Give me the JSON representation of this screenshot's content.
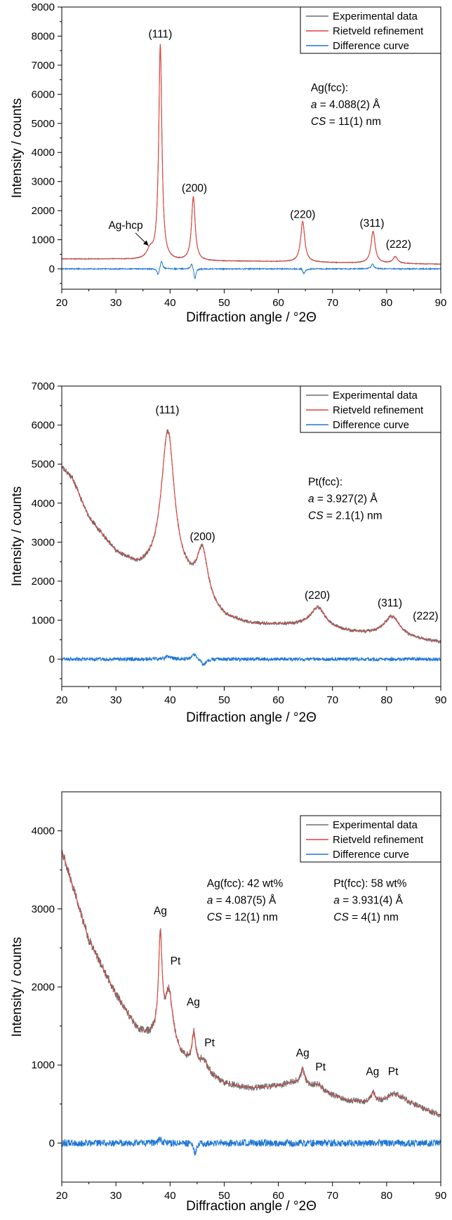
{
  "colors": {
    "experimental": "#6e6e6e",
    "rietveld": "#e0423c",
    "difference": "#1f77d4",
    "axis": "#000000"
  },
  "chart_data": [
    {
      "type": "line",
      "title": "",
      "xlabel": "Diffraction angle / °2Θ",
      "ylabel": "Intensity / counts",
      "xlim": [
        20,
        90
      ],
      "ylim": [
        -700,
        9000
      ],
      "xticks": [
        20,
        30,
        40,
        50,
        60,
        70,
        80,
        90
      ],
      "yticks": [
        0,
        1000,
        2000,
        3000,
        4000,
        5000,
        6000,
        7000,
        8000,
        9000
      ],
      "legend": {
        "position": "top-right",
        "entries": [
          "Experimental data",
          "Rietveld refinement",
          "Difference curve"
        ]
      },
      "series": [
        {
          "name": "Experimental data",
          "color": "#6e6e6e"
        },
        {
          "name": "Rietveld refinement",
          "color": "#e0423c"
        },
        {
          "name": "Difference curve",
          "color": "#1f77d4"
        }
      ],
      "profile": {
        "background": [
          [
            20,
            340
          ],
          [
            30,
            330
          ],
          [
            40,
            260
          ],
          [
            55,
            260
          ],
          [
            70,
            210
          ],
          [
            90,
            160
          ]
        ],
        "peaks": [
          [
            36.3,
            300,
            0.7
          ],
          [
            38.2,
            7400,
            0.35
          ],
          [
            44.3,
            2200,
            0.4
          ],
          [
            64.5,
            1400,
            0.45
          ],
          [
            77.5,
            1100,
            0.45
          ],
          [
            81.6,
            230,
            0.5
          ]
        ],
        "noise": 15,
        "diff_features": [
          [
            37.8,
            -230,
            0.25
          ],
          [
            38.4,
            300,
            0.25
          ],
          [
            44.0,
            200,
            0.25
          ],
          [
            44.6,
            -380,
            0.2
          ],
          [
            64.3,
            50,
            0.3
          ],
          [
            64.7,
            -180,
            0.3
          ],
          [
            77.4,
            160,
            0.3
          ]
        ],
        "diff_noise": 18
      },
      "peak_labels": [
        {
          "x": 38.2,
          "y": 7950,
          "text": "(111)"
        },
        {
          "x": 44.5,
          "y": 2650,
          "text": "(200)"
        },
        {
          "x": 64.5,
          "y": 1750,
          "text": "(220)"
        },
        {
          "x": 77.3,
          "y": 1450,
          "text": "(311)"
        },
        {
          "x": 82.2,
          "y": 720,
          "text": "(222)"
        }
      ],
      "arrow_label": {
        "text": "Ag-hcp",
        "x": 31.8,
        "y": 1380,
        "to": [
          36.0,
          800
        ]
      },
      "info_blocks": [
        {
          "x": 66,
          "y": 6100,
          "phase": "Ag(fcc):",
          "a_sym": "a",
          "a_val": " = 4.088(2) Å",
          "cs_sym": "CS",
          "cs_val": " = 11(1) nm"
        }
      ]
    },
    {
      "type": "line",
      "title": "",
      "xlabel": "Diffraction angle / °2Θ",
      "ylabel": "Intensity / counts",
      "xlim": [
        20,
        90
      ],
      "ylim": [
        -700,
        7000
      ],
      "xticks": [
        20,
        30,
        40,
        50,
        60,
        70,
        80,
        90
      ],
      "yticks": [
        0,
        1000,
        2000,
        3000,
        4000,
        5000,
        6000,
        7000
      ],
      "legend": {
        "position": "top-right",
        "entries": [
          "Experimental data",
          "Rietveld refinement",
          "Difference curve"
        ]
      },
      "series": [
        {
          "name": "Experimental data",
          "color": "#6e6e6e"
        },
        {
          "name": "Rietveld refinement",
          "color": "#e0423c"
        },
        {
          "name": "Difference curve",
          "color": "#1f77d4"
        }
      ],
      "profile": {
        "background": [
          [
            20,
            4900
          ],
          [
            22,
            4600
          ],
          [
            25,
            3600
          ],
          [
            30,
            2700
          ],
          [
            34,
            2280
          ],
          [
            37,
            2150
          ],
          [
            43,
            1800
          ],
          [
            47,
            1250
          ],
          [
            50,
            1000
          ],
          [
            55,
            870
          ],
          [
            60,
            860
          ],
          [
            64,
            850
          ],
          [
            68,
            800
          ],
          [
            72,
            700
          ],
          [
            75,
            650
          ],
          [
            80,
            600
          ],
          [
            85,
            500
          ],
          [
            90,
            420
          ]
        ],
        "peaks": [
          [
            39.6,
            3800,
            1.5
          ],
          [
            46.0,
            1300,
            1.3
          ],
          [
            67.3,
            500,
            1.6
          ],
          [
            81.0,
            500,
            1.8
          ]
        ],
        "noise": 40,
        "diff_features": [
          [
            39.6,
            60,
            0.8
          ],
          [
            44.5,
            120,
            0.5
          ],
          [
            46.2,
            -150,
            0.5
          ]
        ],
        "diff_noise": 45
      },
      "peak_labels": [
        {
          "x": 39.5,
          "y": 6300,
          "text": "(111)"
        },
        {
          "x": 46.0,
          "y": 3050,
          "text": "(200)"
        },
        {
          "x": 67.2,
          "y": 1550,
          "text": "(220)"
        },
        {
          "x": 80.6,
          "y": 1350,
          "text": "(311)"
        },
        {
          "x": 87.2,
          "y": 1020,
          "text": "(222)"
        }
      ],
      "arrow_label": null,
      "info_blocks": [
        {
          "x": 65.5,
          "y": 4450,
          "phase": "Pt(fcc):",
          "a_sym": "a",
          "a_val": " = 3.927(2) Å",
          "cs_sym": "CS",
          "cs_val": " = 2.1(1) nm"
        }
      ]
    },
    {
      "type": "line",
      "title": "",
      "xlabel": "Diffraction angle / °2Θ",
      "ylabel": "Intensity / counts",
      "xlim": [
        20,
        90
      ],
      "ylim": [
        -500,
        4500
      ],
      "xticks": [
        20,
        30,
        40,
        50,
        60,
        70,
        80,
        90
      ],
      "yticks": [
        0,
        1000,
        2000,
        3000,
        4000
      ],
      "legend": {
        "position": "top-right",
        "entries": [
          "Experimental data",
          "Rietveld refinement",
          "Difference curve"
        ]
      },
      "series": [
        {
          "name": "Experimental data",
          "color": "#6e6e6e"
        },
        {
          "name": "Rietveld refinement",
          "color": "#e0423c"
        },
        {
          "name": "Difference curve",
          "color": "#1f77d4"
        }
      ],
      "profile": {
        "background": [
          [
            20,
            3750
          ],
          [
            22,
            3300
          ],
          [
            25,
            2600
          ],
          [
            30,
            1900
          ],
          [
            34,
            1450
          ],
          [
            36,
            1380
          ],
          [
            38,
            1350
          ],
          [
            40,
            1300
          ],
          [
            42,
            1100
          ],
          [
            45,
            950
          ],
          [
            50,
            760
          ],
          [
            55,
            700
          ],
          [
            60,
            730
          ],
          [
            63,
            780
          ],
          [
            65,
            750
          ],
          [
            68,
            650
          ],
          [
            72,
            560
          ],
          [
            76,
            520
          ],
          [
            80,
            540
          ],
          [
            83,
            560
          ],
          [
            86,
            460
          ],
          [
            90,
            350
          ]
        ],
        "peaks": [
          [
            38.2,
            1250,
            0.4
          ],
          [
            39.8,
            600,
            0.8
          ],
          [
            44.4,
            400,
            0.4
          ],
          [
            46.2,
            150,
            0.9
          ],
          [
            64.5,
            180,
            0.4
          ],
          [
            67.4,
            80,
            1.0
          ],
          [
            77.5,
            120,
            0.4
          ],
          [
            81.3,
            80,
            1.2
          ]
        ],
        "noise": 40,
        "diff_features": [
          [
            38.1,
            60,
            0.3
          ],
          [
            44.6,
            -130,
            0.3
          ]
        ],
        "diff_noise": 45
      },
      "peak_labels": [
        {
          "x": 38.2,
          "y": 2930,
          "text": "Ag"
        },
        {
          "x": 41.0,
          "y": 2290,
          "text": "Pt"
        },
        {
          "x": 44.3,
          "y": 1760,
          "text": "Ag"
        },
        {
          "x": 47.3,
          "y": 1240,
          "text": "Pt"
        },
        {
          "x": 64.5,
          "y": 1110,
          "text": "Ag"
        },
        {
          "x": 67.8,
          "y": 930,
          "text": "Pt"
        },
        {
          "x": 77.4,
          "y": 870,
          "text": "Ag"
        },
        {
          "x": 81.2,
          "y": 870,
          "text": "Pt"
        }
      ],
      "arrow_label": null,
      "info_blocks": [
        {
          "x": 46.8,
          "y": 3280,
          "phase": "Ag(fcc): 42 wt%",
          "a_sym": "a",
          "a_val": " = 4.087(5) Å",
          "cs_sym": "CS",
          "cs_val": " = 12(1) nm"
        },
        {
          "x": 70.2,
          "y": 3280,
          "phase": "Pt(fcc): 58 wt%",
          "a_sym": "a",
          "a_val": " = 3.931(4) Å",
          "cs_sym": "CS",
          "cs_val": " = 4(1) nm"
        }
      ]
    }
  ]
}
